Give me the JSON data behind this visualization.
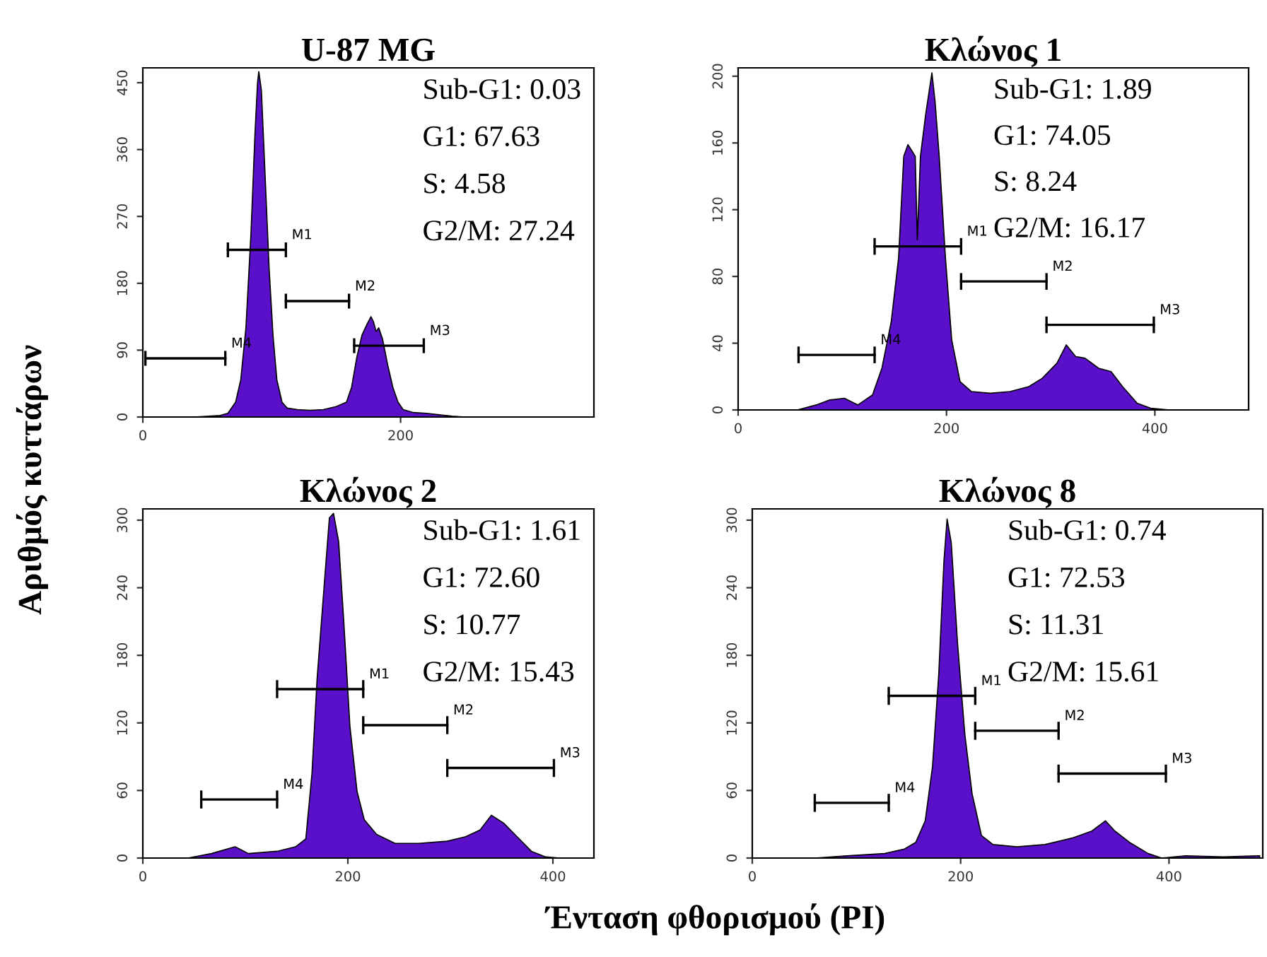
{
  "chart_data": [
    {
      "type": "area",
      "title": "U-87 MG",
      "ylabel": "Αριθμός κυττάρων",
      "xlim": [
        0,
        350
      ],
      "xticks": [
        0,
        200
      ],
      "ylim": [
        0,
        470
      ],
      "yticks": [
        0,
        90,
        180,
        270,
        360,
        450
      ],
      "annotations": [
        "Sub-G1: 0.03",
        "G1: 67.63",
        "S: 4.58",
        "G2/M: 27.24"
      ],
      "series": [
        {
          "color": "#5a10c8",
          "x": [
            0,
            40,
            60,
            66,
            72,
            76,
            80,
            84,
            87,
            89,
            90,
            92,
            95,
            98,
            101,
            104,
            108,
            112,
            120,
            130,
            140,
            150,
            158,
            162,
            166,
            170,
            174,
            177,
            179,
            181,
            183,
            186,
            190,
            194,
            198,
            202,
            210,
            220,
            230,
            240,
            250,
            350
          ],
          "values": [
            0,
            0,
            2,
            5,
            20,
            50,
            120,
            250,
            380,
            450,
            465,
            440,
            320,
            200,
            110,
            50,
            20,
            12,
            10,
            9,
            10,
            14,
            20,
            40,
            80,
            110,
            125,
            135,
            128,
            115,
            120,
            105,
            70,
            40,
            20,
            10,
            6,
            5,
            3,
            1,
            0,
            0
          ]
        },
        {
          "type": "line",
          "name": "M1",
          "color": "#000000",
          "x": [
            66,
            111
          ],
          "values": [
            225,
            225
          ],
          "errors": [
            10,
            10
          ]
        },
        {
          "type": "line",
          "name": "M2",
          "color": "#000000",
          "x": [
            111,
            160
          ],
          "values": [
            156,
            156
          ],
          "errors": [
            10,
            10
          ]
        },
        {
          "type": "line",
          "name": "M3",
          "color": "#000000",
          "x": [
            164,
            218
          ],
          "values": [
            96,
            96
          ],
          "errors": [
            10,
            10
          ]
        },
        {
          "type": "line",
          "name": "M4",
          "color": "#000000",
          "x": [
            2,
            64
          ],
          "values": [
            79,
            79
          ],
          "errors": [
            10,
            10
          ]
        }
      ]
    },
    {
      "type": "area",
      "title": "Κλώνος 1",
      "xlim": [
        0,
        490
      ],
      "xticks": [
        0,
        200,
        400
      ],
      "ylim": [
        0,
        205
      ],
      "yticks": [
        0,
        40,
        80,
        120,
        160,
        200
      ],
      "annotations": [
        "Sub-G1: 1.89",
        "G1: 74.05",
        "S: 8.24",
        "G2/M: 16.17"
      ],
      "series": [
        {
          "color": "#5a10c8",
          "x": [
            0,
            57,
            75,
            88,
            102,
            115,
            129,
            138,
            147,
            154,
            159,
            163,
            167,
            170,
            172,
            175,
            180,
            186,
            189,
            193,
            199,
            205,
            213,
            224,
            242,
            261,
            279,
            292,
            306,
            315,
            324,
            333,
            346,
            358,
            369,
            383,
            396,
            414,
            490
          ],
          "values": [
            0,
            0,
            3,
            6,
            7,
            3,
            9,
            25,
            53,
            91,
            152,
            159,
            155,
            152,
            102,
            152,
            177,
            202,
            185,
            152,
            91,
            42,
            17,
            11,
            10,
            11,
            14,
            19,
            28,
            39,
            32,
            31,
            25,
            23,
            14,
            4,
            1,
            0,
            0
          ]
        },
        {
          "type": "line",
          "name": "M1",
          "color": "#000000",
          "x": [
            131,
            214
          ],
          "values": [
            98,
            98
          ],
          "errors": [
            5,
            5
          ]
        },
        {
          "type": "line",
          "name": "M2",
          "color": "#000000",
          "x": [
            214,
            296
          ],
          "values": [
            77,
            77
          ],
          "errors": [
            5,
            5
          ]
        },
        {
          "type": "line",
          "name": "M3",
          "color": "#000000",
          "x": [
            296,
            399
          ],
          "values": [
            51,
            51
          ],
          "errors": [
            5,
            5
          ]
        },
        {
          "type": "line",
          "name": "M4",
          "color": "#000000",
          "x": [
            58,
            131
          ],
          "values": [
            33,
            33
          ],
          "errors": [
            5,
            5
          ]
        }
      ]
    },
    {
      "type": "area",
      "title": "Κλώνος 2",
      "xlabel": "Ένταση φθορισμού (PI)",
      "xlim": [
        0,
        440
      ],
      "xticks": [
        0,
        200,
        400
      ],
      "ylim": [
        0,
        310
      ],
      "yticks": [
        0,
        60,
        120,
        180,
        240,
        300
      ],
      "annotations": [
        "Sub-G1: 1.61",
        "G1: 72.60",
        "S: 10.77",
        "G2/M: 15.43"
      ],
      "series": [
        {
          "color": "#5a10c8",
          "x": [
            0,
            44,
            67,
            90,
            103,
            131,
            149,
            159,
            165,
            170,
            177,
            182,
            186,
            191,
            196,
            202,
            209,
            216,
            228,
            246,
            269,
            297,
            315,
            329,
            340,
            352,
            365,
            379,
            393,
            407,
            440
          ],
          "values": [
            0,
            0,
            4,
            10,
            4,
            6,
            10,
            17,
            75,
            159,
            243,
            302,
            306,
            281,
            210,
            117,
            59,
            34,
            21,
            13,
            13,
            15,
            19,
            25,
            38,
            31,
            19,
            6,
            1,
            0,
            0
          ]
        },
        {
          "type": "line",
          "name": "M1",
          "color": "#000000",
          "x": [
            131,
            215
          ],
          "values": [
            150,
            150
          ],
          "errors": [
            8,
            8
          ]
        },
        {
          "type": "line",
          "name": "M2",
          "color": "#000000",
          "x": [
            215,
            297
          ],
          "values": [
            118,
            118
          ],
          "errors": [
            8,
            8
          ]
        },
        {
          "type": "line",
          "name": "M3",
          "color": "#000000",
          "x": [
            297,
            401
          ],
          "values": [
            80,
            80
          ],
          "errors": [
            8,
            8
          ]
        },
        {
          "type": "line",
          "name": "M4",
          "color": "#000000",
          "x": [
            57,
            131
          ],
          "values": [
            52,
            52
          ],
          "errors": [
            8,
            8
          ]
        }
      ]
    },
    {
      "type": "area",
      "title": "Κλώνος 8",
      "xlim": [
        0,
        490
      ],
      "xticks": [
        0,
        200,
        400
      ],
      "ylim": [
        0,
        310
      ],
      "yticks": [
        0,
        60,
        120,
        180,
        240,
        300
      ],
      "annotations": [
        "Sub-G1: 0.74",
        "G1: 72.53",
        "S: 11.31",
        "G2/M: 15.61"
      ],
      "series": [
        {
          "color": "#5a10c8",
          "x": [
            0,
            60,
            91,
            127,
            146,
            157,
            166,
            173,
            179,
            184,
            187,
            191,
            197,
            204,
            211,
            220,
            231,
            254,
            281,
            308,
            326,
            339,
            348,
            362,
            380,
            393,
            416,
            452,
            487
          ],
          "values": [
            0,
            0,
            2,
            4,
            8,
            14,
            33,
            81,
            163,
            264,
            301,
            280,
            191,
            110,
            57,
            20,
            12,
            10,
            12,
            18,
            24,
            33,
            24,
            14,
            4,
            0,
            2,
            1,
            2
          ]
        },
        {
          "type": "line",
          "name": "M1",
          "color": "#000000",
          "x": [
            131,
            214
          ],
          "values": [
            144,
            144
          ],
          "errors": [
            8,
            8
          ]
        },
        {
          "type": "line",
          "name": "M2",
          "color": "#000000",
          "x": [
            214,
            294
          ],
          "values": [
            113,
            113
          ],
          "errors": [
            8,
            8
          ]
        },
        {
          "type": "line",
          "name": "M3",
          "color": "#000000",
          "x": [
            294,
            397
          ],
          "values": [
            75,
            75
          ],
          "errors": [
            8,
            8
          ]
        },
        {
          "type": "line",
          "name": "M4",
          "color": "#000000",
          "x": [
            60,
            131
          ],
          "values": [
            49,
            49
          ],
          "errors": [
            8,
            8
          ]
        }
      ]
    }
  ]
}
